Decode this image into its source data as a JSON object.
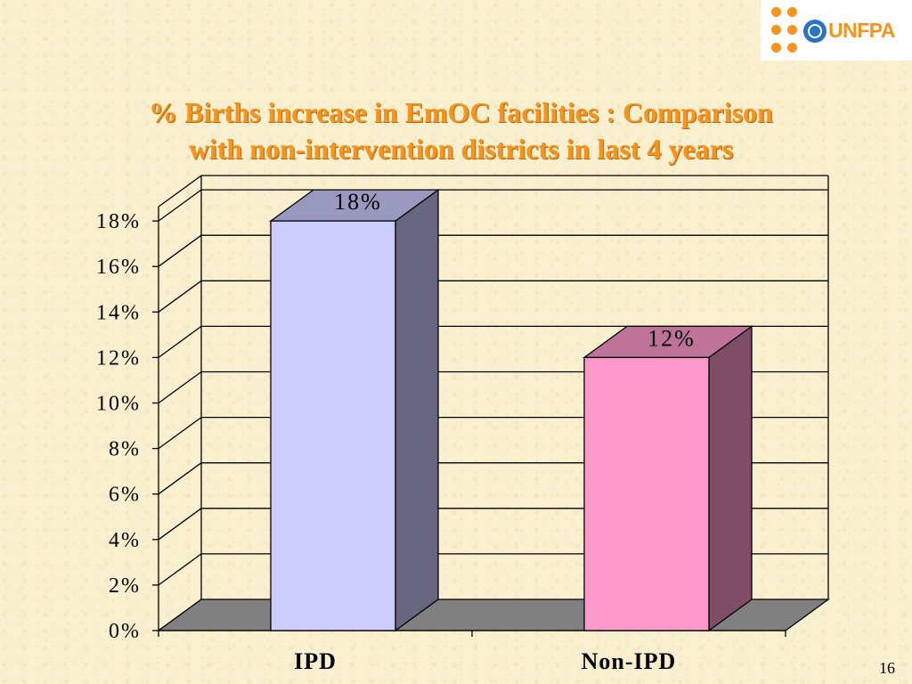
{
  "logo": {
    "text": "UNFPA"
  },
  "title": {
    "line1": "% Births increase in EmOC facilities : Comparison",
    "line2": "with non-intervention districts in last 4 years"
  },
  "page_number": "16",
  "colors": {
    "title": "#f7941d",
    "ipd_bar": "#ccccff",
    "non_ipd_bar": "#ff99cc",
    "floor": "#808080"
  },
  "chart_data": {
    "type": "bar",
    "categories": [
      "IPD",
      "Non-IPD"
    ],
    "values": [
      18,
      12
    ],
    "value_labels": [
      "18%",
      "12%"
    ],
    "y_ticks": [
      "0%",
      "2%",
      "4%",
      "6%",
      "8%",
      "10%",
      "12%",
      "14%",
      "16%",
      "18%"
    ],
    "ylim": [
      0,
      18
    ],
    "grid": true,
    "three_d": true
  }
}
